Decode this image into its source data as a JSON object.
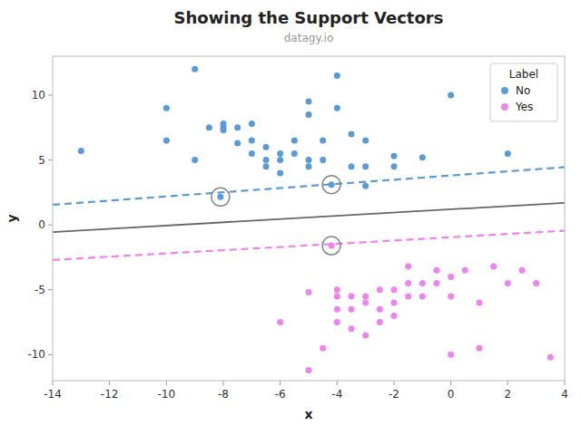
{
  "chart_data": {
    "type": "scatter",
    "title": "Showing the Support Vectors",
    "subtitle": "datagy.io",
    "x_label": "x",
    "y_label": "y",
    "xlim": [
      -14,
      4
    ],
    "ylim": [
      -12,
      13
    ],
    "xticks": [
      -14,
      -12,
      -10,
      -8,
      -6,
      -4,
      -2,
      0,
      2,
      4
    ],
    "yticks": [
      -10,
      -5,
      0,
      5,
      10
    ],
    "grid": false,
    "legend": "upper right",
    "legend_title": "Label",
    "background_color": "#ffffff",
    "series": [
      {
        "name": "No",
        "type": "scatter",
        "color": "#5B9BD5",
        "marker": "circle",
        "x": [
          -13,
          -10,
          -10,
          -9,
          -9,
          -8.5,
          -8,
          -8,
          -8,
          -7.5,
          -7.5,
          -7,
          -7,
          -7,
          -6.5,
          -6.5,
          -6.5,
          -6,
          -6,
          -6,
          -5.5,
          -5.5,
          -5,
          -5,
          -5,
          -5,
          -4.5,
          -4.5,
          -4,
          -4,
          -3.5,
          -3.5,
          -3,
          -3,
          -3,
          -2,
          -2,
          -1,
          0,
          2
        ],
        "values": [
          5.7,
          9.0,
          6.5,
          12.0,
          5.0,
          7.5,
          7.8,
          7.3,
          7.5,
          6.3,
          7.5,
          7.8,
          6.5,
          5.5,
          6.0,
          5.0,
          4.5,
          5.5,
          5.0,
          4.0,
          6.5,
          5.5,
          9.5,
          8.5,
          5.0,
          4.5,
          6.5,
          5.0,
          11.5,
          9.0,
          4.5,
          7.0,
          6.5,
          4.5,
          3.0,
          5.3,
          4.5,
          5.2,
          10.0,
          5.5
        ]
      },
      {
        "name": "Yes",
        "type": "scatter",
        "color": "#EE82EE",
        "marker": "circle",
        "x": [
          -6,
          -5,
          -5,
          -4.5,
          -4,
          -4,
          -4,
          -4,
          -3.5,
          -3.5,
          -3.5,
          -3,
          -3,
          -3,
          -2.5,
          -2.5,
          -2.5,
          -2,
          -2,
          -2,
          -1.5,
          -1.5,
          -1.5,
          -1,
          -1,
          -0.5,
          -0.5,
          0,
          0,
          0,
          0.5,
          1,
          1,
          1.5,
          2,
          2.5,
          3,
          3.5
        ],
        "values": [
          -7.5,
          -5.2,
          -11.2,
          -9.5,
          -6.5,
          -5.5,
          -5.0,
          -7.5,
          -5.5,
          -6.5,
          -8.0,
          -5.5,
          -6.0,
          -8.5,
          -5.0,
          -6.5,
          -7.5,
          -5.0,
          -6.0,
          -7.0,
          -3.2,
          -4.5,
          -5.5,
          -4.5,
          -5.5,
          -3.5,
          -4.5,
          -10.0,
          -5.5,
          -4.0,
          -3.5,
          -6.0,
          -9.5,
          -3.2,
          -4.5,
          -3.5,
          -4.5,
          -10.2
        ]
      },
      {
        "type": "line",
        "color": "#666666",
        "line_style": "solid",
        "x": [
          -14,
          4
        ],
        "values": [
          -0.55,
          1.7
        ]
      },
      {
        "type": "line",
        "color": "#5B9BD5",
        "line_style": "dashed",
        "x": [
          -14,
          4
        ],
        "values": [
          1.55,
          4.45
        ]
      },
      {
        "type": "line",
        "color": "#EE82EE",
        "line_style": "dashed",
        "x": [
          -14,
          4
        ],
        "values": [
          -2.7,
          -0.45
        ]
      },
      {
        "type": "scatter",
        "marker": "circled",
        "colors": [
          "#5B9BD5",
          "#5B9BD5",
          "#EE82EE"
        ],
        "x": [
          -8.1,
          -4.2,
          -4.2
        ],
        "values": [
          2.15,
          3.1,
          -1.6
        ]
      }
    ]
  }
}
